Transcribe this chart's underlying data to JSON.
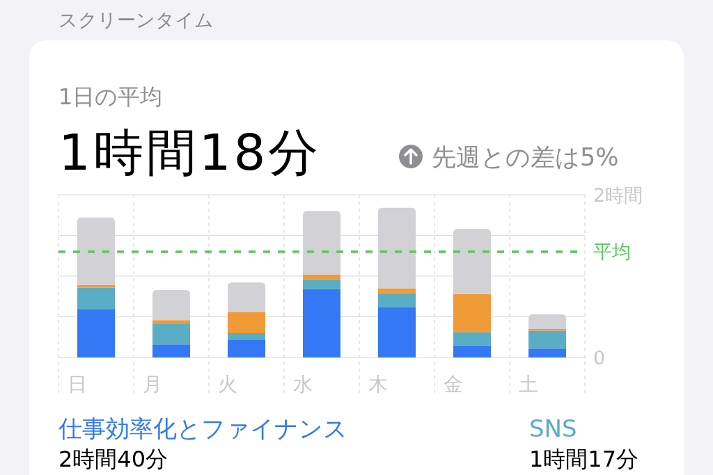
{
  "chart_data": {
    "type": "bar",
    "title": "スクリーンタイム",
    "subtitle": "1日の平均",
    "annotations": [
      "1時間18分",
      "先週との差は5%",
      "2時間40分",
      "1時間17分"
    ],
    "categories": [
      "日",
      "月",
      "火",
      "水",
      "木",
      "金",
      "土"
    ],
    "series": [
      {
        "name": "仕事効率化とファイナンス",
        "color": "#3478f6",
        "values": [
          0.59,
          0.16,
          0.22,
          0.84,
          0.62,
          0.15,
          0.11
        ]
      },
      {
        "name": "SNS",
        "color": "#59adc4",
        "values": [
          0.27,
          0.25,
          0.08,
          0.12,
          0.17,
          0.16,
          0.22
        ]
      },
      {
        "color": "#f19a38",
        "values": [
          0.03,
          0.05,
          0.26,
          0.06,
          0.06,
          0.47,
          0.02
        ]
      },
      {
        "color": "#d1d1d6",
        "values": [
          0.83,
          0.37,
          0.36,
          0.78,
          0.99,
          0.8,
          0.18
        ]
      }
    ],
    "stacked": true,
    "ylim": [
      0,
      2
    ],
    "yticks": [
      0,
      {
        "value": 0.5,
        "label": null
      },
      {
        "value": 1,
        "label": null
      },
      {
        "value": 1.5,
        "label": null
      },
      {
        "value": 2,
        "label": "2時間"
      }
    ],
    "grid": true,
    "legend": "bottom",
    "ref_lines": [
      {
        "axis": "y",
        "value": 1.3,
        "label": "平均",
        "color": "#5ac85a",
        "line_style": "dashed"
      }
    ]
  }
}
